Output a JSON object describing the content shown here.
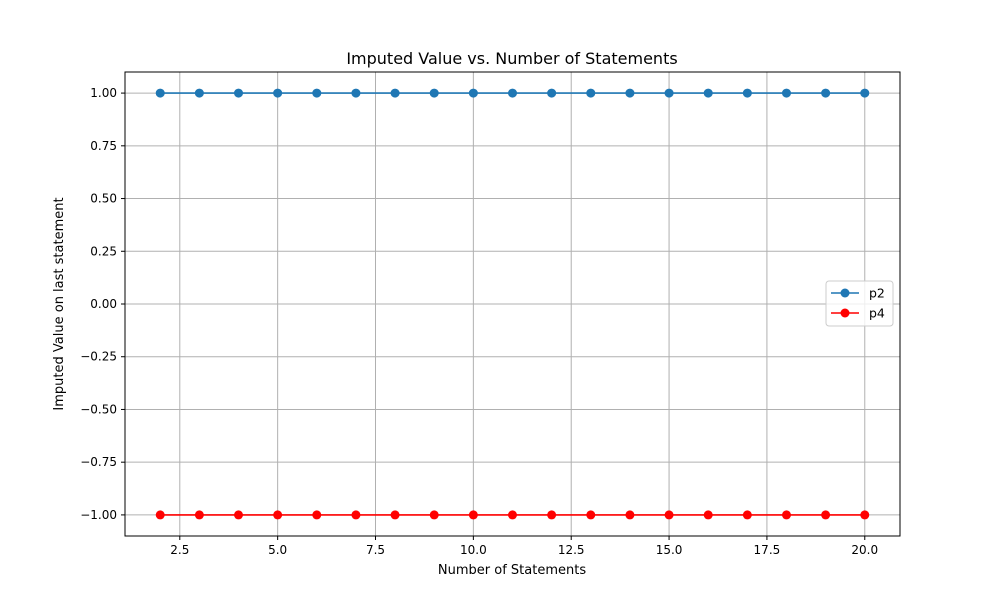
{
  "chart_data": {
    "type": "line",
    "title": "Imputed Value vs. Number of Statements",
    "xlabel": "Number of Statements",
    "ylabel": "Imputed Value on last statement",
    "x": [
      2,
      3,
      4,
      5,
      6,
      7,
      8,
      9,
      10,
      11,
      12,
      13,
      14,
      15,
      16,
      17,
      18,
      19,
      20
    ],
    "series": [
      {
        "name": "p2",
        "color": "#1f77b4",
        "marker": "circle",
        "values": [
          1,
          1,
          1,
          1,
          1,
          1,
          1,
          1,
          1,
          1,
          1,
          1,
          1,
          1,
          1,
          1,
          1,
          1,
          1
        ]
      },
      {
        "name": "p4",
        "color": "#ff0000",
        "marker": "circle",
        "values": [
          -1,
          -1,
          -1,
          -1,
          -1,
          -1,
          -1,
          -1,
          -1,
          -1,
          -1,
          -1,
          -1,
          -1,
          -1,
          -1,
          -1,
          -1,
          -1
        ]
      }
    ],
    "xlim": [
      1.1,
      20.9
    ],
    "ylim": [
      -1.1,
      1.1
    ],
    "xticks": [
      2.5,
      5.0,
      7.5,
      10.0,
      12.5,
      15.0,
      17.5,
      20.0
    ],
    "xtick_labels": [
      "2.5",
      "5.0",
      "7.5",
      "10.0",
      "12.5",
      "15.0",
      "17.5",
      "20.0"
    ],
    "yticks": [
      -1.0,
      -0.75,
      -0.5,
      -0.25,
      0.0,
      0.25,
      0.5,
      0.75,
      1.0
    ],
    "ytick_labels": [
      "−1.00",
      "−0.75",
      "−0.50",
      "−0.25",
      "0.00",
      "0.25",
      "0.50",
      "0.75",
      "1.00"
    ],
    "grid": true,
    "legend_position": "center-right"
  }
}
